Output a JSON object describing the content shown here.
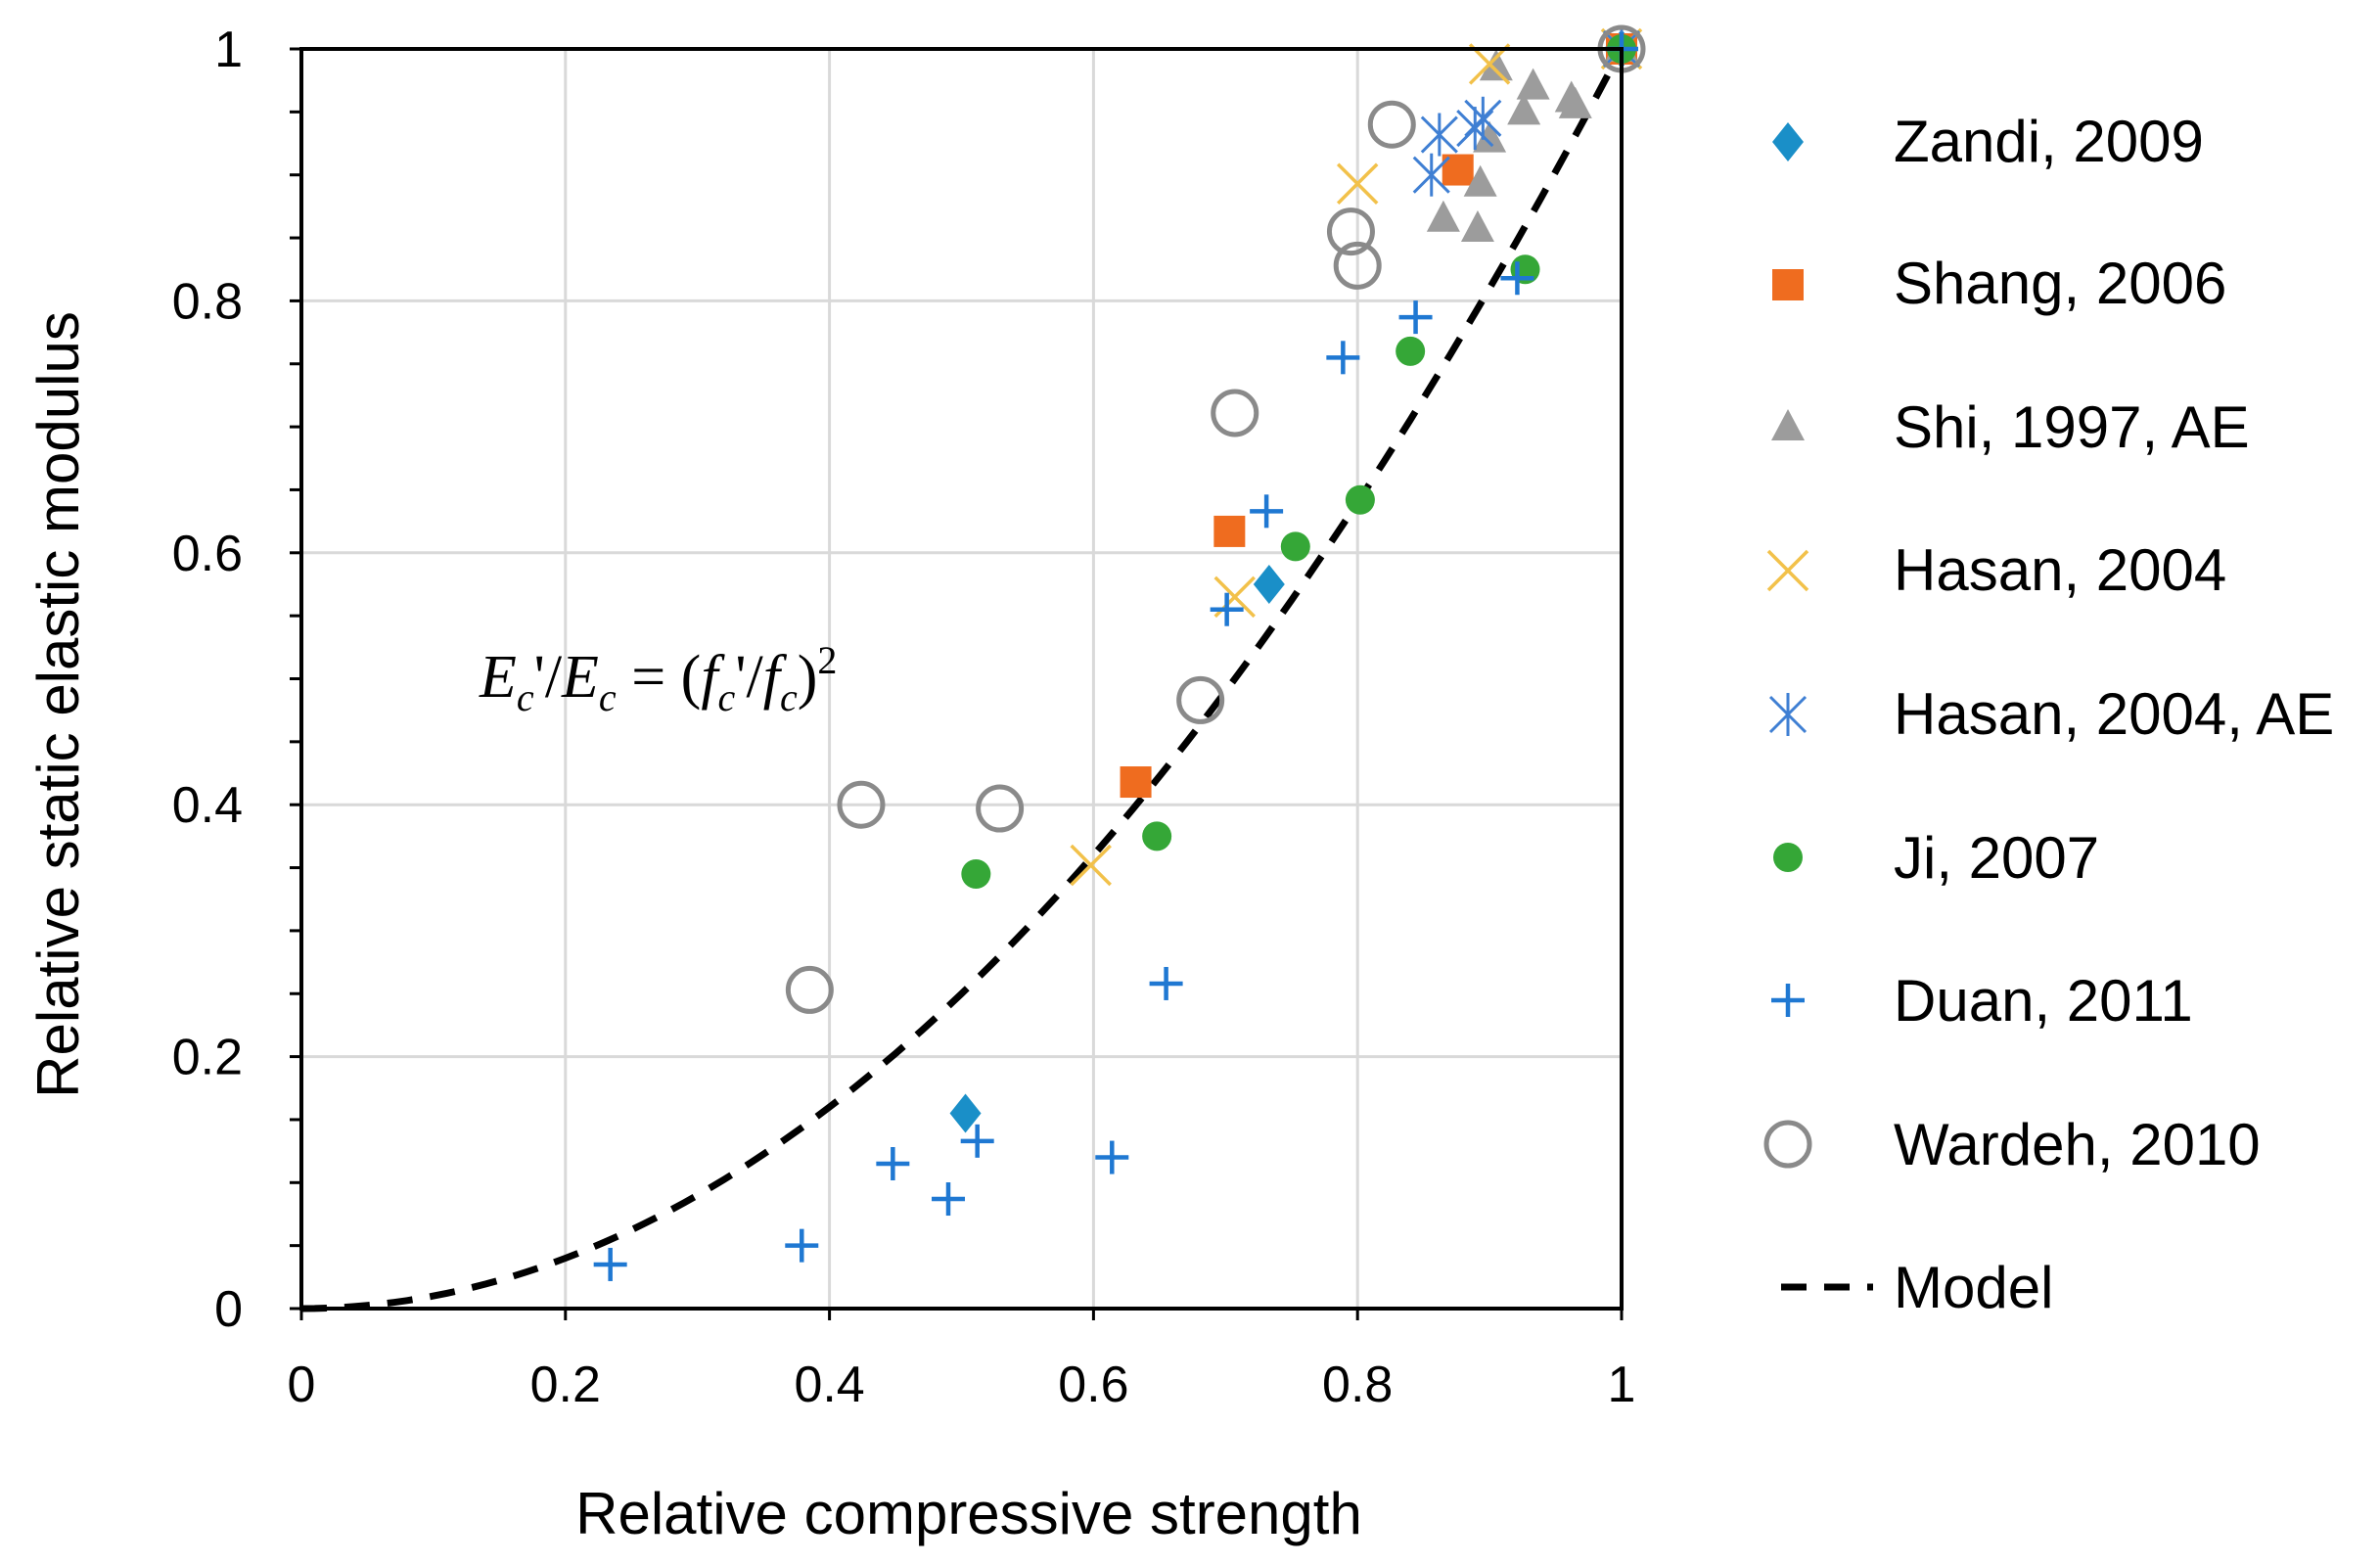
{
  "chart_data": {
    "type": "scatter",
    "title": "",
    "xlabel": "Relative compressive strength",
    "ylabel": "Relative static elastic modulus",
    "xlim": [
      0,
      1
    ],
    "ylim": [
      0,
      1
    ],
    "xticks": [
      "0",
      "0.2",
      "0.4",
      "0.6",
      "0.8",
      "1"
    ],
    "yticks": [
      "0",
      "0.2",
      "0.4",
      "0.6",
      "0.8",
      "1"
    ],
    "grid": true,
    "legend_position": "right",
    "annotation": {
      "E": "E",
      "sub_c": "c",
      "prime": "'",
      "slash": "/",
      "equals": " = (",
      "f": "f",
      "close": ")",
      "power": "2",
      "text": "Ec'/Ec = (fc'/fc)2"
    },
    "colors": {
      "zandi": "#1a8fc8",
      "shang": "#ef6c1f",
      "shi": "#9c9c9c",
      "hasan": "#f2c14a",
      "hasan_ae": "#3f7fd3",
      "ji": "#35a737",
      "duan": "#1f78d2",
      "wardeh": "#8a8a8a",
      "model": "#000000"
    },
    "series": [
      {
        "name": "Zandi, 2009",
        "marker": "diamond",
        "color_key": "zandi",
        "points": [
          [
            0.503,
            0.155
          ],
          [
            0.733,
            0.575
          ],
          [
            1.0,
            1.0
          ]
        ]
      },
      {
        "name": "Shang, 2006",
        "marker": "square",
        "color_key": "shang",
        "points": [
          [
            0.632,
            0.418
          ],
          [
            0.703,
            0.617
          ],
          [
            0.876,
            0.904
          ],
          [
            1.0,
            1.0
          ]
        ]
      },
      {
        "name": "Shi, 1997, AE",
        "marker": "triangle",
        "color_key": "shi",
        "points": [
          [
            0.865,
            0.865
          ],
          [
            0.891,
            0.857
          ],
          [
            0.893,
            0.893
          ],
          [
            0.9,
            0.928
          ],
          [
            0.905,
            0.985
          ],
          [
            0.926,
            0.95
          ],
          [
            0.933,
            0.97
          ],
          [
            0.962,
            0.96
          ],
          [
            0.965,
            0.955
          ],
          [
            1.0,
            1.0
          ]
        ]
      },
      {
        "name": "Hasan, 2004",
        "marker": "x",
        "color_key": "hasan",
        "points": [
          [
            0.598,
            0.352
          ],
          [
            0.707,
            0.565
          ],
          [
            0.8,
            0.893
          ],
          [
            0.9,
            0.988
          ],
          [
            1.0,
            1.0
          ]
        ]
      },
      {
        "name": "Hasan, 2004, AE",
        "marker": "asterisk",
        "color_key": "hasan_ae",
        "points": [
          [
            0.856,
            0.9
          ],
          [
            0.862,
            0.932
          ],
          [
            0.889,
            0.937
          ],
          [
            0.895,
            0.945
          ],
          [
            1.0,
            1.0
          ]
        ]
      },
      {
        "name": "Ji, 2007",
        "marker": "circle",
        "color_key": "ji",
        "points": [
          [
            0.511,
            0.345
          ],
          [
            0.648,
            0.375
          ],
          [
            0.753,
            0.605
          ],
          [
            0.802,
            0.642
          ],
          [
            0.84,
            0.76
          ],
          [
            0.927,
            0.825
          ],
          [
            1.0,
            1.0
          ]
        ]
      },
      {
        "name": "Duan, 2011",
        "marker": "plus",
        "color_key": "duan",
        "points": [
          [
            0.234,
            0.035
          ],
          [
            0.379,
            0.05
          ],
          [
            0.448,
            0.115
          ],
          [
            0.49,
            0.087
          ],
          [
            0.512,
            0.133
          ],
          [
            0.614,
            0.12
          ],
          [
            0.655,
            0.258
          ],
          [
            0.701,
            0.555
          ],
          [
            0.731,
            0.633
          ],
          [
            0.789,
            0.755
          ],
          [
            0.844,
            0.787
          ],
          [
            0.921,
            0.818
          ],
          [
            1.0,
            1.0
          ]
        ]
      },
      {
        "name": "Wardeh, 2010",
        "marker": "open-circle",
        "color_key": "wardeh",
        "points": [
          [
            0.385,
            0.253
          ],
          [
            0.424,
            0.4
          ],
          [
            0.529,
            0.397
          ],
          [
            0.681,
            0.483
          ],
          [
            0.707,
            0.711
          ],
          [
            0.795,
            0.855
          ],
          [
            0.8,
            0.828
          ],
          [
            0.826,
            0.94
          ],
          [
            1.0,
            1.0
          ]
        ]
      },
      {
        "name": "Model",
        "marker": "dashed-line",
        "color_key": "model",
        "function": "y = x^2",
        "x_range": [
          0,
          1
        ]
      }
    ]
  }
}
